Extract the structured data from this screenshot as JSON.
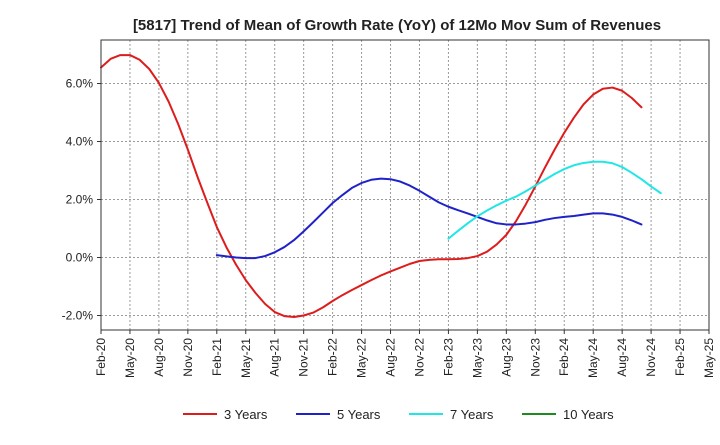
{
  "chart_data": {
    "type": "line",
    "title": "[5817]  Trend of Mean of Growth Rate (YoY) of 12Mo Mov Sum of Revenues",
    "xlabel": "",
    "ylabel": "",
    "ylim": [
      -2.5,
      7.5
    ],
    "x_tick_labels": [
      "Feb-20",
      "May-20",
      "Aug-20",
      "Nov-20",
      "Feb-21",
      "May-21",
      "Aug-21",
      "Nov-21",
      "Feb-22",
      "May-22",
      "Aug-22",
      "Nov-22",
      "Feb-23",
      "May-23",
      "Aug-23",
      "Nov-23",
      "Feb-24",
      "May-24",
      "Aug-24",
      "Nov-24",
      "Feb-25",
      "May-25"
    ],
    "y_ticks": [
      -2.0,
      0.0,
      2.0,
      4.0,
      6.0
    ],
    "y_tick_labels": [
      "-2.0%",
      "0.0%",
      "2.0%",
      "4.0%",
      "6.0%"
    ],
    "grid": true,
    "legend_position": "bottom",
    "series": [
      {
        "name": "3 Years",
        "color": "#dd1c1c",
        "start_index": 0,
        "values": [
          6.55,
          6.85,
          6.98,
          6.98,
          6.82,
          6.5,
          6.02,
          5.38,
          4.6,
          3.72,
          2.78,
          1.9,
          1.05,
          0.35,
          -0.25,
          -0.78,
          -1.22,
          -1.6,
          -1.88,
          -2.02,
          -2.05,
          -2.0,
          -1.9,
          -1.72,
          -1.5,
          -1.3,
          -1.12,
          -0.95,
          -0.78,
          -0.62,
          -0.48,
          -0.35,
          -0.22,
          -0.12,
          -0.08,
          -0.06,
          -0.06,
          -0.05,
          -0.02,
          0.05,
          0.2,
          0.45,
          0.78,
          1.25,
          1.82,
          2.45,
          3.1,
          3.72,
          4.3,
          4.82,
          5.28,
          5.62,
          5.82,
          5.86,
          5.75,
          5.5,
          5.18
        ]
      },
      {
        "name": "5 Years",
        "color": "#1f22c8",
        "start_index": 12,
        "values": [
          0.08,
          0.04,
          0.0,
          -0.02,
          -0.02,
          0.05,
          0.18,
          0.36,
          0.6,
          0.9,
          1.22,
          1.55,
          1.88,
          2.15,
          2.4,
          2.57,
          2.68,
          2.72,
          2.7,
          2.62,
          2.48,
          2.3,
          2.1,
          1.9,
          1.75,
          1.63,
          1.52,
          1.4,
          1.28,
          1.18,
          1.14,
          1.14,
          1.17,
          1.22,
          1.3,
          1.36,
          1.4,
          1.43,
          1.48,
          1.52,
          1.52,
          1.48,
          1.4,
          1.28,
          1.14
        ]
      },
      {
        "name": "7 Years",
        "color": "#22e6e6",
        "start_index": 36,
        "values": [
          0.65,
          0.92,
          1.18,
          1.42,
          1.62,
          1.8,
          1.96,
          2.1,
          2.28,
          2.48,
          2.68,
          2.88,
          3.05,
          3.18,
          3.26,
          3.3,
          3.3,
          3.25,
          3.12,
          2.92,
          2.7,
          2.45,
          2.22
        ]
      },
      {
        "name": "10 Years",
        "color": "#1f8a1f",
        "start_index": 0,
        "values": []
      }
    ]
  }
}
